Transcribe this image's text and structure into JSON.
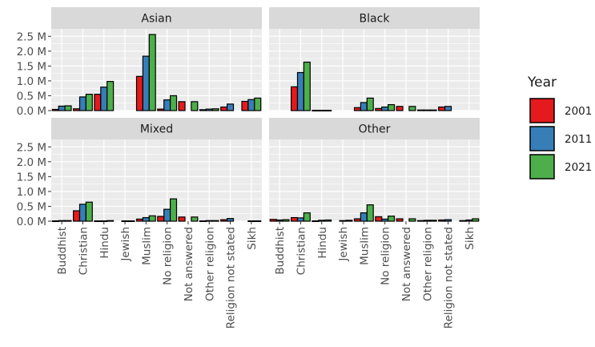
{
  "chart_data": {
    "type": "bar",
    "facet_by": "ethnic group",
    "layout": "2x2 facet grid, shared axes",
    "categories": [
      "Buddhist",
      "Christian",
      "Hindu",
      "Jewish",
      "Muslim",
      "No religion",
      "Not answered",
      "Other religion",
      "Religion not stated",
      "Sikh"
    ],
    "series_names": [
      "2001",
      "2011",
      "2021"
    ],
    "y_ticks": [
      0,
      0.5,
      1.0,
      1.5,
      2.0,
      2.5
    ],
    "y_tick_labels": [
      "0.0 M",
      "0.5 M",
      "1.0 M",
      "1.5 M",
      "2.0 M",
      "2.5 M"
    ],
    "ylim": [
      0,
      2.75
    ],
    "y_unit": "millions",
    "grid": true,
    "legend": {
      "title": "Year",
      "position": "right"
    },
    "colors": {
      "2001": "#e41a1c",
      "2011": "#377eb8",
      "2021": "#4daf4a"
    },
    "panels": [
      {
        "title": "Asian",
        "values": {
          "2001": [
            0.04,
            0.06,
            0.55,
            0.0,
            1.15,
            0.05,
            0.3,
            0.03,
            0.12,
            0.31
          ],
          "2011": [
            0.15,
            0.46,
            0.79,
            0.0,
            1.83,
            0.36,
            0.0,
            0.05,
            0.22,
            0.37
          ],
          "2021": [
            0.16,
            0.55,
            0.98,
            0.0,
            2.56,
            0.5,
            0.3,
            0.06,
            0.0,
            0.42
          ]
        }
      },
      {
        "title": "Black",
        "values": {
          "2001": [
            0.0,
            0.8,
            0.01,
            0.0,
            0.1,
            0.07,
            0.14,
            0.02,
            0.12,
            0.0
          ],
          "2011": [
            0.0,
            1.28,
            0.01,
            0.0,
            0.27,
            0.12,
            0.0,
            0.02,
            0.14,
            0.0
          ],
          "2021": [
            0.0,
            1.63,
            0.01,
            0.0,
            0.42,
            0.2,
            0.14,
            0.02,
            0.0,
            0.0
          ]
        }
      },
      {
        "title": "Mixed",
        "values": {
          "2001": [
            0.01,
            0.35,
            0.01,
            0.0,
            0.07,
            0.16,
            0.14,
            0.01,
            0.05,
            0.0
          ],
          "2011": [
            0.02,
            0.57,
            0.01,
            0.01,
            0.12,
            0.4,
            0.0,
            0.02,
            0.09,
            0.01
          ],
          "2021": [
            0.02,
            0.64,
            0.02,
            0.01,
            0.18,
            0.75,
            0.14,
            0.02,
            0.0,
            0.01
          ]
        }
      },
      {
        "title": "Other",
        "values": {
          "2001": [
            0.06,
            0.12,
            0.01,
            0.0,
            0.08,
            0.15,
            0.08,
            0.02,
            0.04,
            0.02
          ],
          "2011": [
            0.04,
            0.11,
            0.03,
            0.02,
            0.28,
            0.07,
            0.0,
            0.03,
            0.05,
            0.04
          ],
          "2021": [
            0.05,
            0.28,
            0.04,
            0.03,
            0.55,
            0.17,
            0.08,
            0.03,
            0.0,
            0.08
          ]
        }
      }
    ]
  }
}
